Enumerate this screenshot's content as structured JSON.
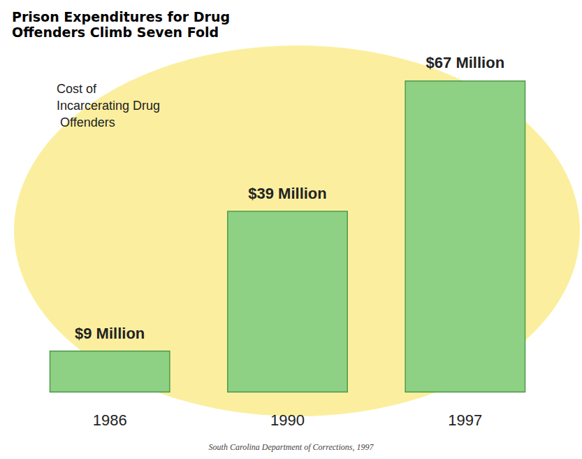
{
  "chart_data": {
    "type": "bar",
    "title": "Prison Expenditures for Drug Offenders Climb Seven Fold",
    "subtitle": "Cost of Incarcerating Drug Offenders",
    "source": "South Carolina Department of Corrections, 1997",
    "categories": [
      "1986",
      "1990",
      "1997"
    ],
    "values": [
      9,
      39,
      67
    ],
    "value_labels": [
      "$9 Million",
      "$39 Million",
      "$67 Million"
    ],
    "color": "#8fd184",
    "data_labels": true,
    "grid": false,
    "tick_labels": "x"
  }
}
